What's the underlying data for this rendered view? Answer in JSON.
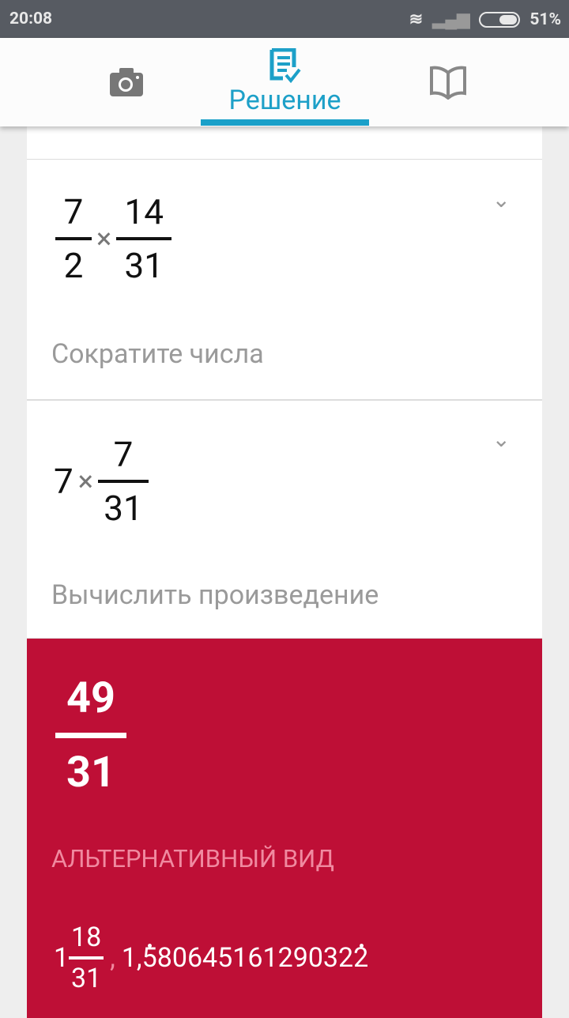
{
  "status_bar": {
    "time": "20:08",
    "battery": "51%"
  },
  "tabs": [
    {
      "icon": "camera-icon"
    },
    {
      "icon": "solution-document-check-icon",
      "label": "Решение"
    },
    {
      "icon": "book-icon"
    }
  ],
  "steps": [
    {
      "expr": {
        "a_num": "7",
        "a_den": "2",
        "op": "×",
        "b_num": "14",
        "b_den": "31"
      },
      "description": "Сократите числа"
    },
    {
      "expr": {
        "whole": "7",
        "op": "×",
        "b_num": "7",
        "b_den": "31"
      },
      "description": "Вычислить произведение"
    }
  ],
  "result": {
    "num": "49",
    "den": "31",
    "alt_label": "АЛЬТЕРНАТИВНЫЙ ВИД",
    "mixed_whole": "1",
    "mixed_num": "18",
    "mixed_den": "31",
    "separator": ",",
    "decimal_prefix": "1,",
    "decimal_first_repeat": "5",
    "decimal_mid": "8064516129032",
    "decimal_last_repeat": "2"
  },
  "colors": {
    "accent": "#1aa0c9",
    "result_bg": "#be0f36"
  }
}
